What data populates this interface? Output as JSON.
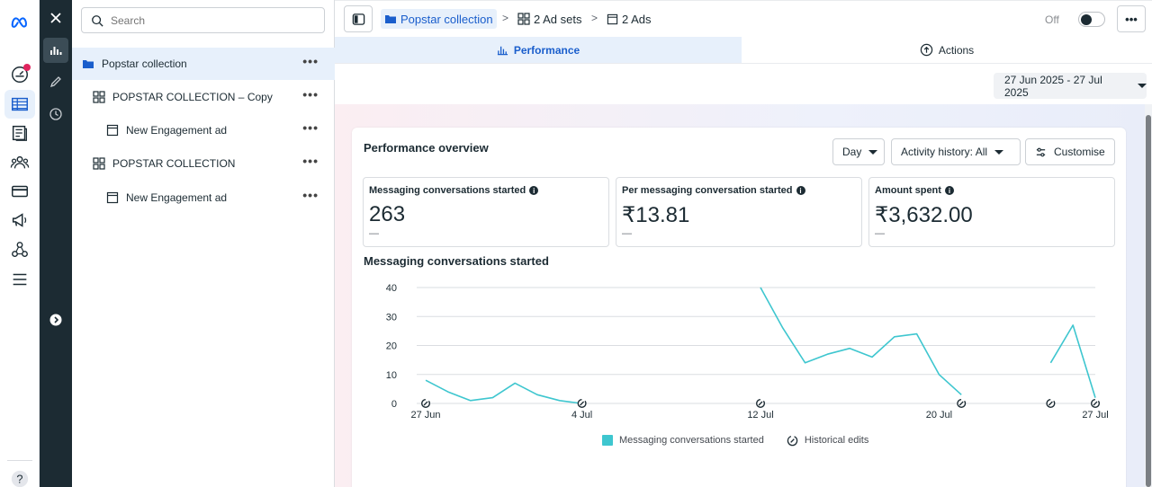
{
  "rail": {
    "icons": [
      "meta-logo-icon",
      "dashboard-icon",
      "campaigns-table-icon",
      "pages-icon",
      "audiences-icon",
      "billing-icon",
      "advertise-icon",
      "business-settings-icon",
      "menu-icon",
      "help-icon"
    ]
  },
  "tree": {
    "search_placeholder": "Search",
    "items": [
      {
        "label": "Popstar collection",
        "level": 0,
        "type": "campaign"
      },
      {
        "label": "POPSTAR COLLECTION – Copy",
        "level": 1,
        "type": "adset"
      },
      {
        "label": "New Engagement ad",
        "level": 2,
        "type": "ad"
      },
      {
        "label": "POPSTAR COLLECTION",
        "level": 1,
        "type": "adset"
      },
      {
        "label": "New Engagement ad",
        "level": 2,
        "type": "ad"
      }
    ],
    "more_label": "•••"
  },
  "topbar": {
    "campaign_crumb": "Popstar collection",
    "adsets_crumb": "2 Ad sets",
    "ads_crumb": "2 Ads",
    "toggle_label": "Off",
    "more_label": "•••"
  },
  "tabs": {
    "performance": "Performance",
    "actions": "Actions"
  },
  "date_range": "27 Jun 2025 - 27 Jul 2025",
  "overview": {
    "title": "Performance overview",
    "granularity": "Day",
    "activity_history": "Activity history: All",
    "customise": "Customise"
  },
  "metrics": [
    {
      "label": "Messaging conversations started",
      "value": "263",
      "change": "—"
    },
    {
      "label": "Per messaging conversation started",
      "value": "₹13.81",
      "change": "—"
    },
    {
      "label": "Amount spent",
      "value": "₹3,632.00",
      "change": "—"
    }
  ],
  "chart_data": {
    "type": "line",
    "title": "Messaging conversations started",
    "x_tick_labels": [
      "27 Jun",
      "4 Jul",
      "12 Jul",
      "20 Jul",
      "27 Jul"
    ],
    "y_ticks": [
      0,
      10,
      20,
      30,
      40
    ],
    "ylim": [
      0,
      40
    ],
    "x_day_range": [
      "27 Jun",
      "27 Jul"
    ],
    "series": [
      {
        "name": "Messaging conversations started",
        "color": "#3ec6cf",
        "segments": [
          [
            [
              "27 Jun",
              8
            ],
            [
              "28 Jun",
              4
            ],
            [
              "29 Jun",
              1
            ],
            [
              "30 Jun",
              2
            ],
            [
              "1 Jul",
              7
            ],
            [
              "2 Jul",
              3
            ],
            [
              "3 Jul",
              1
            ],
            [
              "4 Jul",
              0
            ]
          ],
          [
            [
              "12 Jul",
              40
            ],
            [
              "13 Jul",
              26
            ],
            [
              "14 Jul",
              14
            ],
            [
              "15 Jul",
              17
            ],
            [
              "16 Jul",
              19
            ],
            [
              "17 Jul",
              16
            ],
            [
              "18 Jul",
              23
            ],
            [
              "19 Jul",
              24
            ],
            [
              "20 Jul",
              10
            ],
            [
              "21 Jul",
              3
            ]
          ],
          [
            [
              "25 Jul",
              14
            ],
            [
              "26 Jul",
              27
            ],
            [
              "27 Jul",
              2
            ]
          ]
        ]
      }
    ],
    "historical_edits": [
      "27 Jun",
      "4 Jul",
      "12 Jul",
      "21 Jul",
      "25 Jul",
      "27 Jul"
    ],
    "legend": [
      "Messaging conversations started",
      "Historical edits"
    ],
    "legend_position": "bottom",
    "grid": true
  }
}
